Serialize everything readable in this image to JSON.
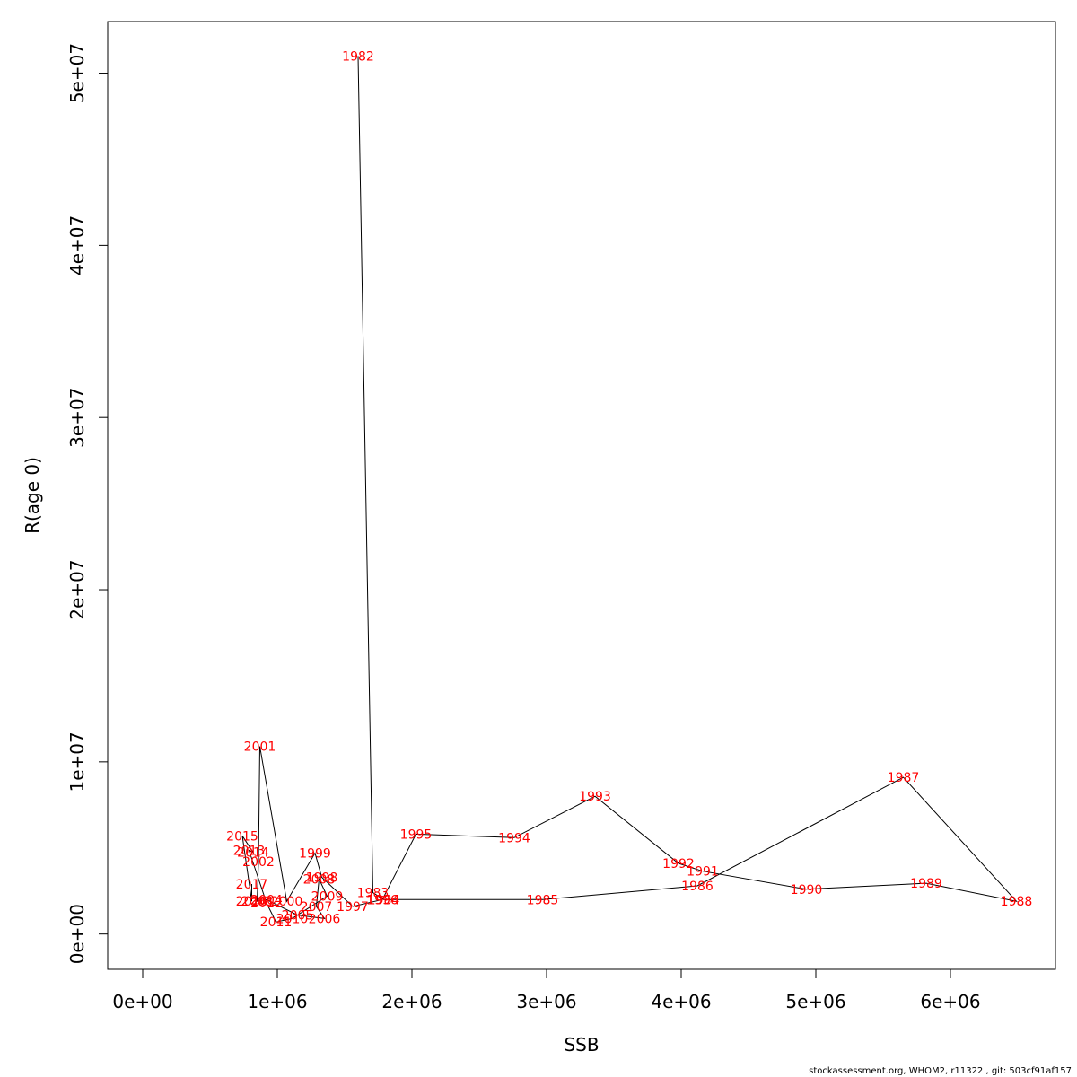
{
  "chart_data": {
    "type": "line",
    "xlabel": "SSB",
    "ylabel": "R(age 0)",
    "xlim": [
      -260000,
      6780000
    ],
    "ylim": [
      -2050000,
      53000000
    ],
    "x_ticks": [
      0,
      1000000,
      2000000,
      3000000,
      4000000,
      5000000,
      6000000
    ],
    "x_tick_labels": [
      "0e+00",
      "1e+06",
      "2e+06",
      "3e+06",
      "4e+06",
      "5e+06",
      "6e+06"
    ],
    "y_ticks": [
      0,
      10000000,
      20000000,
      30000000,
      40000000,
      50000000
    ],
    "y_tick_labels": [
      "0e+00",
      "1e+07",
      "2e+07",
      "3e+07",
      "4e+07",
      "5e+07"
    ],
    "line_color": "#000000",
    "label_color": "#ff0000",
    "points": [
      {
        "year": "1982",
        "ssb": 1600000,
        "r": 51000000
      },
      {
        "year": "1983",
        "ssb": 1710000,
        "r": 2400000
      },
      {
        "year": "1984",
        "ssb": 1790000,
        "r": 2000000
      },
      {
        "year": "1985",
        "ssb": 2970000,
        "r": 2000000
      },
      {
        "year": "1986",
        "ssb": 4120000,
        "r": 2800000
      },
      {
        "year": "1987",
        "ssb": 5650000,
        "r": 9100000
      },
      {
        "year": "1988",
        "ssb": 6490000,
        "r": 1900000
      },
      {
        "year": "1989",
        "ssb": 5820000,
        "r": 2950000
      },
      {
        "year": "1990",
        "ssb": 4930000,
        "r": 2600000
      },
      {
        "year": "1991",
        "ssb": 4160000,
        "r": 3650000
      },
      {
        "year": "1992",
        "ssb": 3980000,
        "r": 4100000
      },
      {
        "year": "1993",
        "ssb": 3360000,
        "r": 8000000
      },
      {
        "year": "1994",
        "ssb": 2760000,
        "r": 5600000
      },
      {
        "year": "1995",
        "ssb": 2030000,
        "r": 5800000
      },
      {
        "year": "1996",
        "ssb": 1780000,
        "r": 2000000
      },
      {
        "year": "1997",
        "ssb": 1560000,
        "r": 1600000
      },
      {
        "year": "1998",
        "ssb": 1330000,
        "r": 3300000
      },
      {
        "year": "1999",
        "ssb": 1280000,
        "r": 4700000
      },
      {
        "year": "2000",
        "ssb": 1070000,
        "r": 1900000
      },
      {
        "year": "2001",
        "ssb": 870000,
        "r": 10900000
      },
      {
        "year": "2002",
        "ssb": 860000,
        "r": 4200000
      },
      {
        "year": "2003",
        "ssb": 850000,
        "r": 1900000
      },
      {
        "year": "2004",
        "ssb": 920000,
        "r": 2000000
      },
      {
        "year": "2005",
        "ssb": 1150000,
        "r": 1100000
      },
      {
        "year": "2006",
        "ssb": 1350000,
        "r": 900000
      },
      {
        "year": "2007",
        "ssb": 1290000,
        "r": 1600000
      },
      {
        "year": "2008",
        "ssb": 1310000,
        "r": 3200000
      },
      {
        "year": "2009",
        "ssb": 1370000,
        "r": 2200000
      },
      {
        "year": "2010",
        "ssb": 1110000,
        "r": 900000
      },
      {
        "year": "2011",
        "ssb": 990000,
        "r": 700000
      },
      {
        "year": "2012",
        "ssb": 920000,
        "r": 1800000
      },
      {
        "year": "2013",
        "ssb": 790000,
        "r": 4850000
      },
      {
        "year": "2014",
        "ssb": 820000,
        "r": 4750000
      },
      {
        "year": "2015",
        "ssb": 740000,
        "r": 5700000
      },
      {
        "year": "2016",
        "ssb": 810000,
        "r": 1900000
      },
      {
        "year": "2017",
        "ssb": 810000,
        "r": 2900000
      }
    ]
  },
  "footer": "stockassessment.org, WHOM2, r11322 , git: 503cf91af157"
}
